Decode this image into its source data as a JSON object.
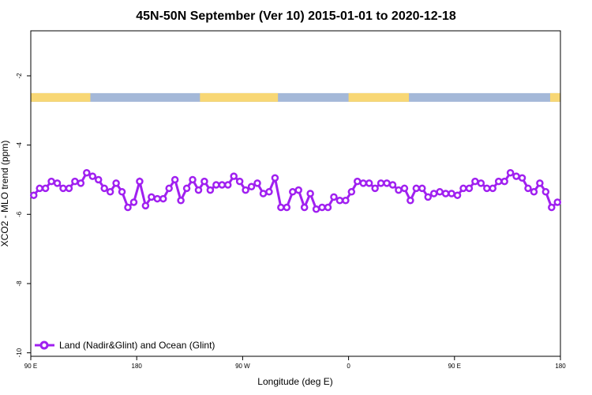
{
  "chart_data": {
    "type": "line",
    "title": "45N-50N September (Ver 10)   2015-01-01 to 2020-12-18",
    "xlabel": "Longitude (deg E)",
    "ylabel": "XCO2 - MLO trend (ppm)",
    "xlim": [
      90,
      450
    ],
    "ylim": [
      -10.1,
      -0.7
    ],
    "x_ticks": [
      {
        "value": 90,
        "label": "90 E"
      },
      {
        "value": 162,
        "label": "180"
      },
      {
        "value": 234,
        "label": "90 W"
      },
      {
        "value": 306,
        "label": "0"
      },
      {
        "value": 378,
        "label": "90 E"
      },
      {
        "value": 450,
        "label": "180"
      }
    ],
    "y_ticks": [
      -2,
      -4,
      -6,
      -8,
      -10
    ],
    "grid": false,
    "legend_position": "bottom-left",
    "colors": {
      "series": "#a020f0",
      "land": "#f8d775",
      "ocean": "#a4b8d8"
    },
    "land_ocean_strip": {
      "y_range": [
        -2.5,
        -2.75
      ],
      "land_segments": [
        [
          90,
          130.5
        ],
        [
          205,
          258
        ],
        [
          306,
          347
        ],
        [
          443,
          450
        ]
      ]
    },
    "series": [
      {
        "name": "Land (Nadir&Glint) and Ocean (Glint)",
        "x": [
          92,
          96,
          100,
          104,
          108,
          112,
          116,
          120,
          124,
          128,
          132,
          136,
          140,
          144,
          148,
          152,
          156,
          160,
          164,
          168,
          172,
          176,
          180,
          184,
          188,
          192,
          196,
          200,
          204,
          208,
          212,
          216,
          220,
          224,
          228,
          232,
          236,
          240,
          244,
          248,
          252,
          256,
          260,
          264,
          268,
          272,
          276,
          280,
          284,
          288,
          292,
          296,
          300,
          304,
          308,
          312,
          316,
          320,
          324,
          328,
          332,
          336,
          340,
          344,
          348,
          352,
          356,
          360,
          364,
          368,
          372,
          376,
          380,
          384,
          388,
          392,
          396,
          400,
          404,
          408,
          412,
          416,
          420,
          424,
          428,
          432,
          436,
          440,
          444,
          448
        ],
        "y": [
          -5.45,
          -5.25,
          -5.25,
          -5.05,
          -5.1,
          -5.25,
          -5.25,
          -5.05,
          -5.1,
          -4.8,
          -4.9,
          -5.0,
          -5.25,
          -5.35,
          -5.1,
          -5.35,
          -5.8,
          -5.65,
          -5.05,
          -5.75,
          -5.5,
          -5.55,
          -5.55,
          -5.25,
          -5.0,
          -5.6,
          -5.25,
          -5.0,
          -5.3,
          -5.05,
          -5.3,
          -5.15,
          -5.15,
          -5.15,
          -4.9,
          -5.05,
          -5.3,
          -5.2,
          -5.1,
          -5.4,
          -5.35,
          -4.95,
          -5.8,
          -5.8,
          -5.35,
          -5.3,
          -5.8,
          -5.4,
          -5.85,
          -5.8,
          -5.8,
          -5.5,
          -5.6,
          -5.6,
          -5.35,
          -5.05,
          -5.1,
          -5.1,
          -5.25,
          -5.1,
          -5.1,
          -5.15,
          -5.3,
          -5.25,
          -5.6,
          -5.25,
          -5.25,
          -5.5,
          -5.4,
          -5.35,
          -5.4,
          -5.4,
          -5.45,
          -5.25,
          -5.25,
          -5.05,
          -5.1,
          -5.25,
          -5.25,
          -5.05,
          -5.05,
          -4.8,
          -4.9,
          -4.95,
          -5.25,
          -5.35,
          -5.1,
          -5.35,
          -5.8,
          -5.65
        ]
      }
    ]
  }
}
